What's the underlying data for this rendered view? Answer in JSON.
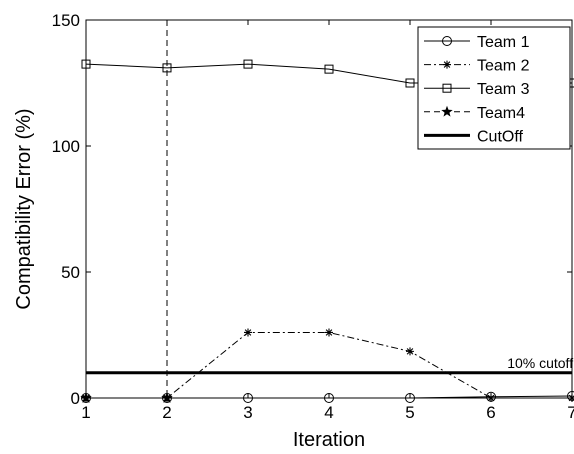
{
  "chart_data": {
    "type": "line",
    "title": "",
    "xlabel": "Iteration",
    "ylabel": "Compatibility Error (%)",
    "xlim": [
      1,
      7
    ],
    "ylim": [
      0,
      150
    ],
    "xticks": [
      1,
      2,
      3,
      4,
      5,
      6,
      7
    ],
    "yticks": [
      0,
      50,
      100,
      150
    ],
    "grid": false,
    "legend_position": "top-right",
    "series": [
      {
        "name": "Team 1",
        "style": "solid",
        "marker": "circle",
        "x": [
          1,
          2,
          3,
          4,
          5,
          6,
          7
        ],
        "values": [
          0,
          0,
          0,
          0,
          0,
          0.5,
          0.8
        ]
      },
      {
        "name": "Team 2",
        "style": "dashdot",
        "marker": "asterisk",
        "x": [
          1,
          2,
          3,
          4,
          5,
          6,
          7
        ],
        "values": [
          0,
          0,
          26,
          26,
          18.5,
          0,
          0
        ]
      },
      {
        "name": "Team 3",
        "style": "solid",
        "marker": "square",
        "x": [
          1,
          2,
          3,
          4,
          5,
          6,
          7
        ],
        "values": [
          132.5,
          131,
          132.5,
          130.5,
          125,
          125,
          125
        ]
      },
      {
        "name": "Team4",
        "style": "dashed",
        "marker": "star",
        "x": [
          1,
          2
        ],
        "values": [
          0,
          0
        ]
      },
      {
        "name": "CutOff",
        "style": "solid-thick",
        "marker": "none",
        "x": [
          1,
          7
        ],
        "values": [
          10,
          10
        ]
      }
    ],
    "vertical_line": {
      "x": 2,
      "style": "dashed"
    },
    "annotations": [
      {
        "text": "10% cutoff",
        "x": 6.2,
        "y": 10
      }
    ]
  }
}
